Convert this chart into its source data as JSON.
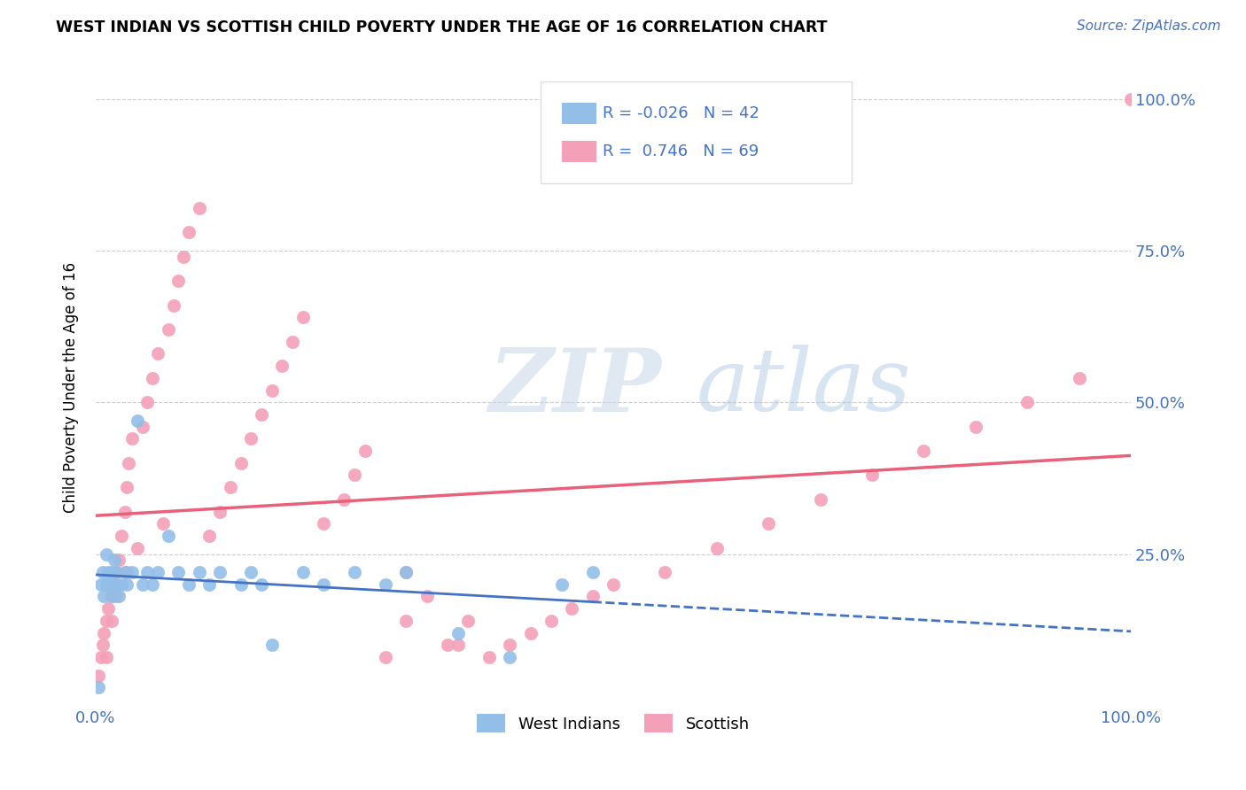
{
  "title": "WEST INDIAN VS SCOTTISH CHILD POVERTY UNDER THE AGE OF 16 CORRELATION CHART",
  "source": "Source: ZipAtlas.com",
  "ylabel": "Child Poverty Under the Age of 16",
  "legend_label1": "West Indians",
  "legend_label2": "Scottish",
  "r1": "-0.026",
  "n1": "42",
  "r2": "0.746",
  "n2": "69",
  "color_wi": "#92BEE8",
  "color_sc": "#F4A0B8",
  "line_color_wi_solid": "#4472C4",
  "line_color_wi_dash": "#4472C4",
  "line_color_sc": "#E8607A",
  "wi_x": [
    0.3,
    0.5,
    0.7,
    0.8,
    1.0,
    1.0,
    1.2,
    1.3,
    1.5,
    1.5,
    1.8,
    2.0,
    2.0,
    2.2,
    2.5,
    2.8,
    3.0,
    3.5,
    4.0,
    4.5,
    5.0,
    5.5,
    6.0,
    7.0,
    8.0,
    9.0,
    10.0,
    11.0,
    12.0,
    14.0,
    15.0,
    16.0,
    17.0,
    20.0,
    22.0,
    25.0,
    28.0,
    30.0,
    35.0,
    40.0,
    45.0,
    48.0
  ],
  "wi_y": [
    3.0,
    20.0,
    22.0,
    18.0,
    25.0,
    20.0,
    22.0,
    20.0,
    22.0,
    18.0,
    24.0,
    20.0,
    22.0,
    18.0,
    20.0,
    22.0,
    20.0,
    22.0,
    47.0,
    20.0,
    22.0,
    20.0,
    22.0,
    28.0,
    22.0,
    20.0,
    22.0,
    20.0,
    22.0,
    20.0,
    22.0,
    20.0,
    10.0,
    22.0,
    20.0,
    22.0,
    20.0,
    22.0,
    12.0,
    8.0,
    20.0,
    22.0
  ],
  "sc_x": [
    0.3,
    0.5,
    0.7,
    0.8,
    1.0,
    1.0,
    1.2,
    1.5,
    1.5,
    1.8,
    2.0,
    2.0,
    2.2,
    2.5,
    2.8,
    3.0,
    3.0,
    3.2,
    3.5,
    4.0,
    4.5,
    5.0,
    5.5,
    6.0,
    6.5,
    7.0,
    7.5,
    8.0,
    8.5,
    9.0,
    10.0,
    11.0,
    12.0,
    13.0,
    14.0,
    15.0,
    16.0,
    17.0,
    18.0,
    19.0,
    20.0,
    22.0,
    24.0,
    25.0,
    26.0,
    28.0,
    30.0,
    32.0,
    34.0,
    36.0,
    38.0,
    40.0,
    42.0,
    44.0,
    46.0,
    48.0,
    50.0,
    55.0,
    60.0,
    65.0,
    70.0,
    75.0,
    80.0,
    85.0,
    90.0,
    95.0,
    100.0,
    30.0,
    35.0
  ],
  "sc_y": [
    5.0,
    8.0,
    10.0,
    12.0,
    14.0,
    8.0,
    16.0,
    18.0,
    14.0,
    20.0,
    18.0,
    22.0,
    24.0,
    28.0,
    32.0,
    36.0,
    22.0,
    40.0,
    44.0,
    26.0,
    46.0,
    50.0,
    54.0,
    58.0,
    30.0,
    62.0,
    66.0,
    70.0,
    74.0,
    78.0,
    82.0,
    28.0,
    32.0,
    36.0,
    40.0,
    44.0,
    48.0,
    52.0,
    56.0,
    60.0,
    64.0,
    30.0,
    34.0,
    38.0,
    42.0,
    8.0,
    14.0,
    18.0,
    10.0,
    14.0,
    8.0,
    10.0,
    12.0,
    14.0,
    16.0,
    18.0,
    20.0,
    22.0,
    26.0,
    30.0,
    34.0,
    38.0,
    42.0,
    46.0,
    50.0,
    54.0,
    100.0,
    22.0,
    10.0
  ]
}
